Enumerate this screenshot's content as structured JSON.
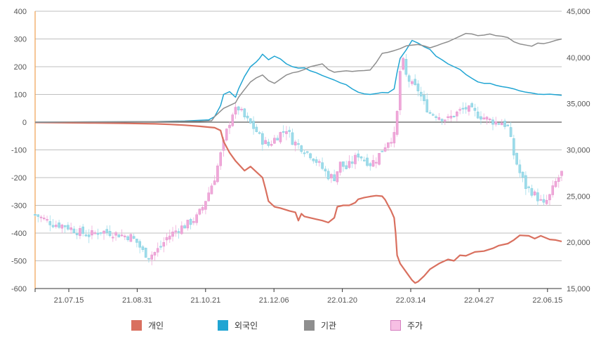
{
  "chart_data": {
    "type": "line",
    "x_ticks": [
      "21.07.15",
      "21.08.31",
      "21.10.21",
      "21.12.06",
      "22.01.20",
      "22.03.14",
      "22.04.27",
      "22.06.15"
    ],
    "y_left": {
      "ylim": [
        -600,
        400
      ],
      "ticks": [
        "400",
        "300",
        "200",
        "100",
        "0",
        "-100",
        "-200",
        "-300",
        "-400",
        "-500",
        "-600"
      ]
    },
    "y_right": {
      "ylim": [
        15000,
        45000
      ],
      "ticks": [
        "45,000",
        "40,000",
        "35,000",
        "30,000",
        "25,000",
        "20,000",
        "15,000"
      ]
    },
    "grid": true,
    "legend_placement": "bottom",
    "series": [
      {
        "name": "개인",
        "axis": "left",
        "color": "#d9705f",
        "points": [
          [
            0,
            -1
          ],
          [
            10,
            -2
          ],
          [
            20,
            -3
          ],
          [
            30,
            -4
          ],
          [
            40,
            -6
          ],
          [
            45,
            -8
          ],
          [
            50,
            -11
          ],
          [
            55,
            -15
          ],
          [
            58,
            -18
          ],
          [
            60,
            -20
          ],
          [
            62,
            -30
          ],
          [
            63,
            -70
          ],
          [
            65,
            -110
          ],
          [
            67,
            -140
          ],
          [
            70,
            -175
          ],
          [
            72,
            -160
          ],
          [
            74,
            -180
          ],
          [
            76,
            -200
          ],
          [
            77,
            -240
          ],
          [
            78,
            -285
          ],
          [
            80,
            -305
          ],
          [
            82,
            -310
          ],
          [
            85,
            -320
          ],
          [
            87,
            -325
          ],
          [
            88,
            -355
          ],
          [
            89,
            -330
          ],
          [
            90,
            -340
          ],
          [
            92,
            -345
          ],
          [
            94,
            -350
          ],
          [
            96,
            -355
          ],
          [
            98,
            -362
          ],
          [
            100,
            -345
          ],
          [
            101,
            -305
          ],
          [
            103,
            -300
          ],
          [
            105,
            -300
          ],
          [
            107,
            -290
          ],
          [
            108,
            -278
          ],
          [
            110,
            -272
          ],
          [
            112,
            -268
          ],
          [
            114,
            -265
          ],
          [
            116,
            -267
          ],
          [
            117,
            -280
          ],
          [
            118,
            -300
          ],
          [
            119,
            -320
          ],
          [
            120,
            -345
          ],
          [
            120.5,
            -400
          ],
          [
            121,
            -480
          ],
          [
            122,
            -510
          ],
          [
            124,
            -540
          ],
          [
            126,
            -570
          ],
          [
            127,
            -580
          ],
          [
            128,
            -575
          ],
          [
            130,
            -555
          ],
          [
            132,
            -530
          ],
          [
            135,
            -510
          ],
          [
            138,
            -495
          ],
          [
            140,
            -500
          ],
          [
            142,
            -480
          ],
          [
            144,
            -482
          ],
          [
            147,
            -468
          ],
          [
            150,
            -465
          ],
          [
            153,
            -455
          ],
          [
            155,
            -445
          ],
          [
            158,
            -438
          ],
          [
            160,
            -425
          ],
          [
            162,
            -408
          ],
          [
            165,
            -410
          ],
          [
            167,
            -420
          ],
          [
            169,
            -410
          ],
          [
            172,
            -423
          ],
          [
            174,
            -425
          ],
          [
            176,
            -430
          ]
        ]
      },
      {
        "name": "외국인",
        "axis": "left",
        "color": "#20a5d3",
        "points": [
          [
            0,
            0
          ],
          [
            20,
            1
          ],
          [
            40,
            2
          ],
          [
            50,
            4
          ],
          [
            58,
            8
          ],
          [
            60,
            20
          ],
          [
            62,
            60
          ],
          [
            63,
            100
          ],
          [
            65,
            110
          ],
          [
            67,
            90
          ],
          [
            68,
            120
          ],
          [
            70,
            165
          ],
          [
            72,
            200
          ],
          [
            74,
            218
          ],
          [
            75,
            230
          ],
          [
            76,
            245
          ],
          [
            78,
            225
          ],
          [
            80,
            238
          ],
          [
            82,
            228
          ],
          [
            84,
            210
          ],
          [
            86,
            200
          ],
          [
            88,
            195
          ],
          [
            90,
            196
          ],
          [
            92,
            185
          ],
          [
            94,
            178
          ],
          [
            96,
            168
          ],
          [
            98,
            160
          ],
          [
            100,
            152
          ],
          [
            102,
            142
          ],
          [
            104,
            135
          ],
          [
            106,
            120
          ],
          [
            108,
            108
          ],
          [
            110,
            102
          ],
          [
            112,
            100
          ],
          [
            114,
            103
          ],
          [
            116,
            107
          ],
          [
            118,
            106
          ],
          [
            120,
            120
          ],
          [
            121,
            180
          ],
          [
            122,
            230
          ],
          [
            124,
            260
          ],
          [
            126,
            295
          ],
          [
            128,
            285
          ],
          [
            130,
            272
          ],
          [
            132,
            262
          ],
          [
            134,
            238
          ],
          [
            136,
            225
          ],
          [
            138,
            210
          ],
          [
            140,
            200
          ],
          [
            142,
            190
          ],
          [
            144,
            172
          ],
          [
            146,
            158
          ],
          [
            148,
            145
          ],
          [
            150,
            140
          ],
          [
            152,
            140
          ],
          [
            154,
            133
          ],
          [
            156,
            128
          ],
          [
            158,
            125
          ],
          [
            160,
            120
          ],
          [
            162,
            113
          ],
          [
            164,
            108
          ],
          [
            166,
            105
          ],
          [
            168,
            101
          ],
          [
            170,
            100
          ],
          [
            172,
            101
          ],
          [
            174,
            99
          ],
          [
            176,
            97
          ]
        ]
      },
      {
        "name": "기관",
        "axis": "left",
        "color": "#8e8e8e",
        "points": [
          [
            0,
            0
          ],
          [
            20,
            1
          ],
          [
            40,
            2
          ],
          [
            55,
            3
          ],
          [
            59,
            5
          ],
          [
            60,
            20
          ],
          [
            62,
            40
          ],
          [
            63,
            50
          ],
          [
            65,
            60
          ],
          [
            67,
            70
          ],
          [
            68,
            90
          ],
          [
            70,
            118
          ],
          [
            72,
            145
          ],
          [
            74,
            160
          ],
          [
            76,
            170
          ],
          [
            78,
            150
          ],
          [
            80,
            140
          ],
          [
            82,
            155
          ],
          [
            84,
            170
          ],
          [
            86,
            178
          ],
          [
            88,
            182
          ],
          [
            90,
            190
          ],
          [
            92,
            200
          ],
          [
            94,
            205
          ],
          [
            96,
            210
          ],
          [
            98,
            190
          ],
          [
            100,
            180
          ],
          [
            102,
            183
          ],
          [
            104,
            185
          ],
          [
            106,
            183
          ],
          [
            108,
            185
          ],
          [
            110,
            186
          ],
          [
            112,
            188
          ],
          [
            114,
            215
          ],
          [
            116,
            248
          ],
          [
            118,
            252
          ],
          [
            120,
            258
          ],
          [
            122,
            265
          ],
          [
            124,
            275
          ],
          [
            126,
            278
          ],
          [
            128,
            280
          ],
          [
            130,
            275
          ],
          [
            132,
            268
          ],
          [
            134,
            275
          ],
          [
            136,
            283
          ],
          [
            138,
            290
          ],
          [
            140,
            300
          ],
          [
            142,
            310
          ],
          [
            144,
            320
          ],
          [
            146,
            318
          ],
          [
            148,
            312
          ],
          [
            150,
            314
          ],
          [
            152,
            318
          ],
          [
            154,
            312
          ],
          [
            156,
            310
          ],
          [
            158,
            305
          ],
          [
            160,
            290
          ],
          [
            162,
            282
          ],
          [
            164,
            278
          ],
          [
            166,
            274
          ],
          [
            168,
            285
          ],
          [
            170,
            283
          ],
          [
            172,
            288
          ],
          [
            174,
            295
          ],
          [
            176,
            300
          ]
        ]
      },
      {
        "name": "주가",
        "axis": "right",
        "type": "candlestick",
        "color": "#f0a8d8",
        "down_color": "#9ddcea",
        "close_path": [
          [
            0,
            23000
          ],
          [
            6,
            22000
          ],
          [
            10,
            21800
          ],
          [
            14,
            21200
          ],
          [
            18,
            20800
          ],
          [
            22,
            21200
          ],
          [
            26,
            21000
          ],
          [
            30,
            20700
          ],
          [
            32,
            20600
          ],
          [
            34,
            20000
          ],
          [
            36,
            19000
          ],
          [
            38,
            18500
          ],
          [
            40,
            18900
          ],
          [
            42,
            19500
          ],
          [
            44,
            20500
          ],
          [
            46,
            21000
          ],
          [
            48,
            21500
          ],
          [
            50,
            21800
          ],
          [
            52,
            22200
          ],
          [
            54,
            22700
          ],
          [
            56,
            23800
          ],
          [
            58,
            25400
          ],
          [
            60,
            27000
          ],
          [
            62,
            29500
          ],
          [
            64,
            32000
          ],
          [
            66,
            34000
          ],
          [
            68,
            34500
          ],
          [
            70,
            33500
          ],
          [
            72,
            32800
          ],
          [
            74,
            32000
          ],
          [
            76,
            31000
          ],
          [
            78,
            30500
          ],
          [
            80,
            31200
          ],
          [
            82,
            31800
          ],
          [
            84,
            32300
          ],
          [
            86,
            31000
          ],
          [
            88,
            30500
          ],
          [
            90,
            30000
          ],
          [
            92,
            29500
          ],
          [
            94,
            28800
          ],
          [
            96,
            28000
          ],
          [
            98,
            27200
          ],
          [
            100,
            27000
          ],
          [
            102,
            28500
          ],
          [
            104,
            28000
          ],
          [
            106,
            28700
          ],
          [
            108,
            29500
          ],
          [
            110,
            29000
          ],
          [
            112,
            28500
          ],
          [
            114,
            29000
          ],
          [
            116,
            30000
          ],
          [
            118,
            31000
          ],
          [
            120,
            31500
          ],
          [
            121,
            34000
          ],
          [
            122,
            38500
          ],
          [
            123,
            39500
          ],
          [
            124,
            38000
          ],
          [
            126,
            37000
          ],
          [
            128,
            36500
          ],
          [
            130,
            35000
          ],
          [
            132,
            34000
          ],
          [
            134,
            33800
          ],
          [
            136,
            33500
          ],
          [
            138,
            33300
          ],
          [
            140,
            33800
          ],
          [
            142,
            34200
          ],
          [
            144,
            34500
          ],
          [
            146,
            34200
          ],
          [
            148,
            33800
          ],
          [
            150,
            33500
          ],
          [
            152,
            33200
          ],
          [
            154,
            33000
          ],
          [
            156,
            33000
          ],
          [
            158,
            32500
          ],
          [
            160,
            29500
          ],
          [
            162,
            27500
          ],
          [
            164,
            26000
          ],
          [
            166,
            25500
          ],
          [
            168,
            24800
          ],
          [
            170,
            24000
          ],
          [
            172,
            25000
          ],
          [
            174,
            26500
          ],
          [
            176,
            27500
          ]
        ]
      }
    ]
  }
}
